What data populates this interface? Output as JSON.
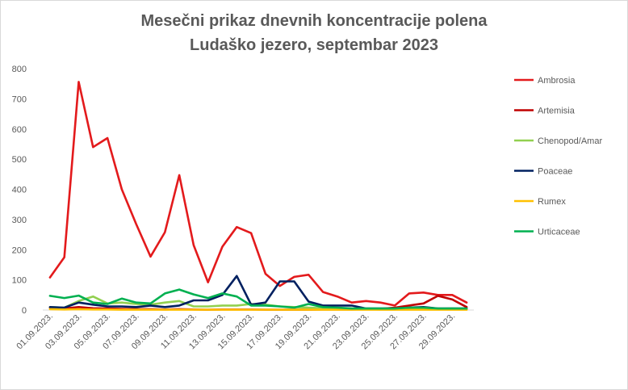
{
  "chart_data": {
    "type": "line",
    "title": "Mesečni prikaz dnevnih koncentracije polena",
    "subtitle": "Ludaško jezero, septembar 2023",
    "xlabel": "",
    "ylabel": "",
    "ylim": [
      0,
      800
    ],
    "yticks": [
      0,
      100,
      200,
      300,
      400,
      500,
      600,
      700,
      800
    ],
    "grid": false,
    "legend_position": "right",
    "x": [
      "01.09.2023.",
      "02.09.2023.",
      "03.09.2023.",
      "04.09.2023.",
      "05.09.2023.",
      "06.09.2023.",
      "07.09.2023.",
      "08.09.2023.",
      "09.09.2023.",
      "10.09.2023.",
      "11.09.2023.",
      "12.09.2023.",
      "13.09.2023.",
      "14.09.2023.",
      "15.09.2023.",
      "16.09.2023.",
      "17.09.2023.",
      "18.09.2023.",
      "19.09.2023.",
      "20.09.2023.",
      "21.09.2023.",
      "22.09.2023.",
      "23.09.2023.",
      "24.09.2023.",
      "25.09.2023.",
      "26.09.2023.",
      "27.09.2023.",
      "28.09.2023.",
      "29.09.2023.",
      "30.09.2023."
    ],
    "x_tick_labels": [
      "01.09.2023.",
      "03.09.2023.",
      "05.09.2023.",
      "07.09.2023.",
      "09.09.2023.",
      "11.09.2023.",
      "13.09.2023.",
      "15.09.2023.",
      "17.09.2023.",
      "19.09.2023.",
      "21.09.2023.",
      "23.09.2023.",
      "25.09.2023.",
      "27.09.2023.",
      "29.09.2023."
    ],
    "series": [
      {
        "name": "Ambrosia",
        "color": "#e31a1c",
        "values": [
          108,
          175,
          756,
          540,
          570,
          400,
          285,
          177,
          258,
          447,
          215,
          92,
          210,
          275,
          255,
          120,
          80,
          110,
          117,
          60,
          45,
          25,
          30,
          25,
          15,
          55,
          58,
          50,
          50,
          25
        ]
      },
      {
        "name": "Artemisia",
        "color": "#c00000",
        "values": [
          8,
          5,
          10,
          6,
          5,
          4,
          3,
          3,
          2,
          3,
          2,
          1,
          2,
          2,
          2,
          1,
          1,
          1,
          1,
          2,
          2,
          2,
          3,
          4,
          8,
          15,
          22,
          47,
          35,
          10
        ]
      },
      {
        "name": "Chenopod/Amar",
        "color": "#92d050",
        "values": [
          10,
          8,
          30,
          45,
          22,
          25,
          20,
          18,
          25,
          30,
          12,
          12,
          15,
          15,
          20,
          18,
          12,
          10,
          8,
          6,
          6,
          5,
          3,
          2,
          2,
          5,
          5,
          4,
          5,
          3
        ]
      },
      {
        "name": "Poaceae",
        "color": "#002060",
        "values": [
          10,
          8,
          25,
          18,
          12,
          12,
          10,
          15,
          10,
          15,
          32,
          32,
          50,
          113,
          18,
          25,
          95,
          95,
          28,
          15,
          15,
          15,
          5,
          5,
          5,
          8,
          10,
          5,
          5,
          5
        ]
      },
      {
        "name": "Rumex",
        "color": "#ffc000",
        "values": [
          3,
          2,
          3,
          2,
          2,
          1,
          1,
          1,
          1,
          1,
          1,
          1,
          1,
          1,
          1,
          1,
          1,
          1,
          1,
          1,
          1,
          1,
          1,
          1,
          1,
          1,
          1,
          1,
          1,
          1
        ]
      },
      {
        "name": "Urticaceae",
        "color": "#00b050",
        "values": [
          47,
          40,
          48,
          25,
          20,
          38,
          25,
          22,
          55,
          68,
          52,
          40,
          55,
          45,
          15,
          15,
          12,
          8,
          20,
          10,
          8,
          5,
          5,
          5,
          5,
          8,
          8,
          5,
          5,
          5
        ]
      }
    ]
  }
}
